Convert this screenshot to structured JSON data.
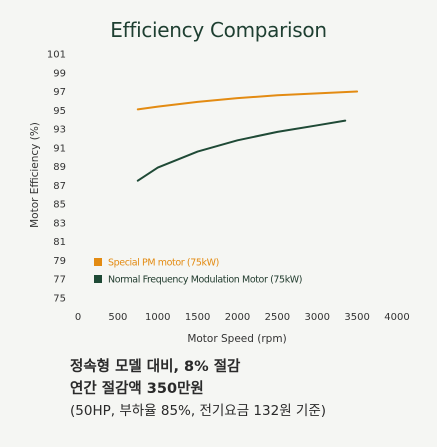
{
  "chart_data": {
    "type": "line",
    "title": "Efficiency Comparison",
    "xlabel": "Motor Speed (rpm)",
    "ylabel": "Motor Efficiency (%)",
    "xlim": [
      0,
      4000
    ],
    "ylim": [
      75,
      101
    ],
    "x_ticks": [
      0,
      500,
      1000,
      1500,
      2000,
      2500,
      3000,
      3500,
      4000
    ],
    "y_ticks": [
      75,
      77,
      79,
      81,
      83,
      85,
      87,
      89,
      91,
      93,
      95,
      97,
      99,
      101
    ],
    "grid": false,
    "legend_position": "bottom-left",
    "series": [
      {
        "name": "Special PM motor (75kW)",
        "color": "#e38b12",
        "points": [
          [
            750,
            95.1
          ],
          [
            1000,
            95.4
          ],
          [
            1500,
            95.9
          ],
          [
            2000,
            96.3
          ],
          [
            2500,
            96.6
          ],
          [
            3000,
            96.8
          ],
          [
            3500,
            97.0
          ]
        ]
      },
      {
        "name": "Normal Frequency Modulation Motor (75kW)",
        "color": "#1f4a36",
        "points": [
          [
            750,
            87.5
          ],
          [
            1000,
            88.9
          ],
          [
            1500,
            90.6
          ],
          [
            2000,
            91.8
          ],
          [
            2500,
            92.7
          ],
          [
            3000,
            93.4
          ],
          [
            3350,
            93.9
          ]
        ]
      }
    ]
  },
  "caption": {
    "line1": "정속형 모델 대비, 8% 절감",
    "line2": "연간 절감액 350만원",
    "line3": "(50HP, 부하율 85%, 전기요금 132원 기준)"
  }
}
